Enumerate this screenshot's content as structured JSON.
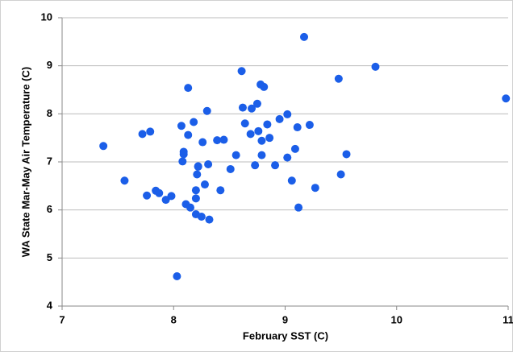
{
  "chart_data": {
    "type": "scatter",
    "x_label": "February SST (C)",
    "y_label": "WA State Mar-May Air Temperature (C)",
    "color": "#1b5ee8",
    "grid": true,
    "xlim": [
      7,
      11
    ],
    "xticks": [
      7,
      8,
      9,
      10,
      11
    ],
    "ylim": [
      4,
      10
    ],
    "yticks": [
      4,
      5,
      6,
      7,
      8,
      9,
      10
    ],
    "x": [
      7.37,
      7.56,
      7.72,
      7.79,
      7.76,
      7.84,
      7.87,
      7.93,
      7.98,
      8.03,
      8.07,
      8.08,
      8.09,
      8.09,
      8.11,
      8.13,
      8.13,
      8.15,
      8.18,
      8.2,
      8.2,
      8.2,
      8.21,
      8.22,
      8.22,
      8.25,
      8.26,
      8.28,
      8.3,
      8.31,
      8.32,
      8.39,
      8.42,
      8.45,
      8.51,
      8.56,
      8.61,
      8.62,
      8.64,
      8.69,
      8.7,
      8.73,
      8.75,
      8.76,
      8.78,
      8.79,
      8.79,
      8.81,
      8.84,
      8.86,
      8.91,
      8.95,
      9.02,
      9.02,
      9.06,
      9.09,
      9.11,
      9.12,
      9.17,
      9.22,
      9.27,
      9.48,
      9.5,
      9.55,
      9.81,
      10.98
    ],
    "values": [
      7.33,
      6.61,
      7.58,
      7.63,
      6.3,
      6.4,
      6.35,
      6.21,
      6.29,
      4.62,
      7.75,
      7.01,
      7.21,
      7.16,
      6.12,
      8.54,
      7.56,
      6.05,
      7.83,
      6.41,
      5.91,
      6.24,
      6.74,
      6.9,
      6.91,
      5.86,
      7.41,
      6.53,
      8.06,
      6.95,
      5.8,
      7.45,
      6.41,
      7.46,
      6.85,
      7.14,
      8.89,
      8.13,
      7.8,
      7.58,
      8.11,
      6.93,
      8.21,
      7.64,
      8.61,
      7.44,
      7.14,
      8.56,
      7.78,
      7.5,
      6.93,
      7.89,
      7.99,
      7.09,
      6.61,
      7.27,
      7.72,
      6.05,
      9.6,
      7.77,
      6.46,
      8.73,
      6.74,
      7.16,
      8.98,
      8.32
    ]
  }
}
